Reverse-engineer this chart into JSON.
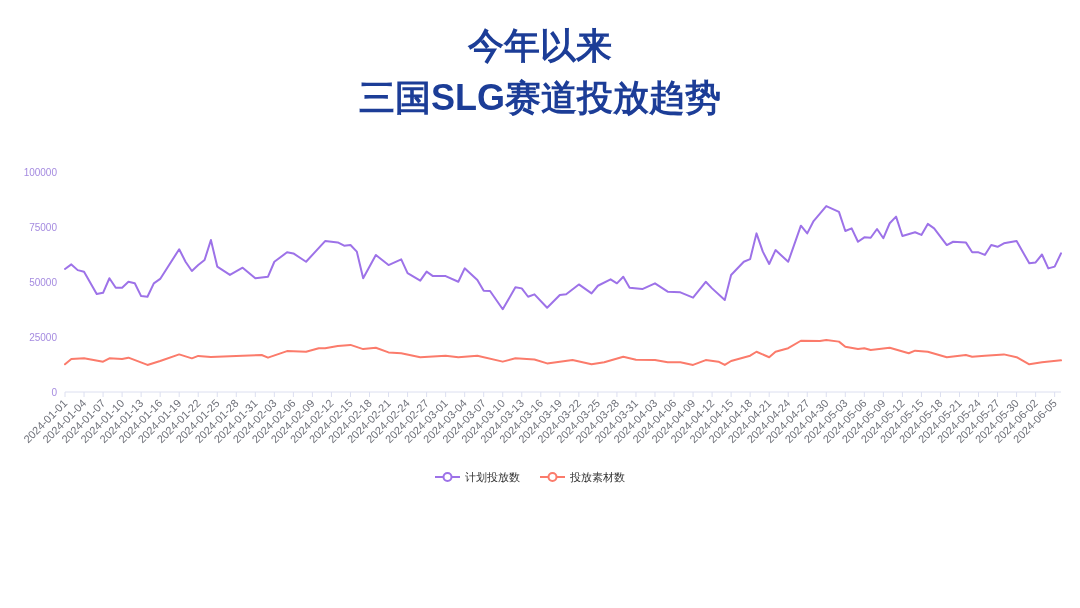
{
  "chart_data": {
    "type": "line",
    "title": "今年以来",
    "subtitle": "三国SLG赛道投放趋势",
    "xlim": [
      "2024-01-01",
      "2024-06-06"
    ],
    "xticks": [
      "2024-01-01",
      "2024-01-04",
      "2024-01-07",
      "2024-01-10",
      "2024-01-13",
      "2024-01-16",
      "2024-01-19",
      "2024-01-22",
      "2024-01-25",
      "2024-01-28",
      "2024-01-31",
      "2024-02-03",
      "2024-02-06",
      "2024-02-09",
      "2024-02-12",
      "2024-02-15",
      "2024-02-18",
      "2024-02-21",
      "2024-02-24",
      "2024-02-27",
      "2024-03-01",
      "2024-03-04",
      "2024-03-07",
      "2024-03-10",
      "2024-03-13",
      "2024-03-16",
      "2024-03-19",
      "2024-03-22",
      "2024-03-25",
      "2024-03-28",
      "2024-03-31",
      "2024-04-03",
      "2024-04-06",
      "2024-04-09",
      "2024-04-12",
      "2024-04-15",
      "2024-04-18",
      "2024-04-21",
      "2024-04-24",
      "2024-04-27",
      "2024-04-30",
      "2024-05-03",
      "2024-05-06",
      "2024-05-09",
      "2024-05-12",
      "2024-05-15",
      "2024-05-18",
      "2024-05-21",
      "2024-05-24",
      "2024-05-27",
      "2024-05-30",
      "2024-06-02",
      "2024-06-05"
    ],
    "ylim": [
      0,
      100000
    ],
    "yticks": [
      0,
      25000,
      50000,
      75000,
      100000
    ],
    "legend": "bottom",
    "marker": "none",
    "line_style": "solid",
    "series": [
      {
        "name": "计划投放数",
        "color": "#9d72e8",
        "x": [
          "2024-01-01",
          "2024-01-02",
          "2024-01-03",
          "2024-01-04",
          "2024-01-06",
          "2024-01-07",
          "2024-01-08",
          "2024-01-09",
          "2024-01-10",
          "2024-01-11",
          "2024-01-12",
          "2024-01-13",
          "2024-01-14",
          "2024-01-15",
          "2024-01-16",
          "2024-01-19",
          "2024-01-20",
          "2024-01-21",
          "2024-01-22",
          "2024-01-23",
          "2024-01-24",
          "2024-01-25",
          "2024-01-27",
          "2024-01-29",
          "2024-01-31",
          "2024-02-02",
          "2024-02-03",
          "2024-02-05",
          "2024-02-06",
          "2024-02-08",
          "2024-02-11",
          "2024-02-13",
          "2024-02-14",
          "2024-02-15",
          "2024-02-16",
          "2024-02-17",
          "2024-02-19",
          "2024-02-21",
          "2024-02-23",
          "2024-02-24",
          "2024-02-26",
          "2024-02-27",
          "2024-02-28",
          "2024-03-01",
          "2024-03-03",
          "2024-03-04",
          "2024-03-06",
          "2024-03-07",
          "2024-03-08",
          "2024-03-10",
          "2024-03-12",
          "2024-03-13",
          "2024-03-14",
          "2024-03-15",
          "2024-03-17",
          "2024-03-19",
          "2024-03-20",
          "2024-03-22",
          "2024-03-24",
          "2024-03-25",
          "2024-03-27",
          "2024-03-28",
          "2024-03-29",
          "2024-03-30",
          "2024-04-01",
          "2024-04-03",
          "2024-04-05",
          "2024-04-07",
          "2024-04-09",
          "2024-04-11",
          "2024-04-12",
          "2024-04-14",
          "2024-04-15",
          "2024-04-17",
          "2024-04-18",
          "2024-04-19",
          "2024-04-20",
          "2024-04-21",
          "2024-04-22",
          "2024-04-24",
          "2024-04-26",
          "2024-04-27",
          "2024-04-28",
          "2024-04-30",
          "2024-05-02",
          "2024-05-03",
          "2024-05-04",
          "2024-05-05",
          "2024-05-06",
          "2024-05-07",
          "2024-05-08",
          "2024-05-09",
          "2024-05-10",
          "2024-05-11",
          "2024-05-12",
          "2024-05-14",
          "2024-05-15",
          "2024-05-16",
          "2024-05-17",
          "2024-05-19",
          "2024-05-20",
          "2024-05-22",
          "2024-05-23",
          "2024-05-24",
          "2024-05-25",
          "2024-05-26",
          "2024-05-27",
          "2024-05-28",
          "2024-05-30",
          "2024-06-01",
          "2024-06-02",
          "2024-06-03",
          "2024-06-04",
          "2024-06-05",
          "2024-06-06"
        ],
        "values": [
          55900,
          58000,
          55400,
          54700,
          44500,
          45100,
          51700,
          47400,
          47400,
          50100,
          49400,
          43600,
          43300,
          49400,
          51400,
          64900,
          59200,
          55000,
          57700,
          60000,
          69100,
          57000,
          53200,
          56500,
          51700,
          52400,
          59200,
          63500,
          63000,
          59200,
          68600,
          68000,
          66500,
          66800,
          63800,
          51700,
          62300,
          57700,
          60300,
          54000,
          50600,
          54700,
          52700,
          52700,
          50100,
          56200,
          50900,
          46000,
          45900,
          37600,
          47600,
          47100,
          43300,
          44400,
          38300,
          44100,
          44400,
          48900,
          44800,
          48300,
          51200,
          49400,
          52400,
          47400,
          46800,
          49400,
          45600,
          45300,
          42900,
          50100,
          47100,
          41800,
          53200,
          59200,
          60400,
          72100,
          63800,
          58200,
          64500,
          59200,
          75600,
          72100,
          77700,
          84500,
          81900,
          73200,
          74400,
          68300,
          70300,
          70100,
          74100,
          69900,
          76700,
          79700,
          70900,
          72600,
          71400,
          76400,
          74400,
          66800,
          68300,
          68000,
          63500,
          63500,
          62300,
          66800,
          66000,
          67600,
          68600,
          58500,
          58900,
          62500,
          56200,
          57000,
          63000
        ]
      },
      {
        "name": "投放素材数",
        "color": "#fb7b6b",
        "x": [
          "2024-01-01",
          "2024-01-02",
          "2024-01-04",
          "2024-01-07",
          "2024-01-08",
          "2024-01-10",
          "2024-01-11",
          "2024-01-14",
          "2024-01-16",
          "2024-01-19",
          "2024-01-21",
          "2024-01-22",
          "2024-01-24",
          "2024-01-29",
          "2024-02-01",
          "2024-02-02",
          "2024-02-05",
          "2024-02-08",
          "2024-02-10",
          "2024-02-11",
          "2024-02-13",
          "2024-02-15",
          "2024-02-17",
          "2024-02-19",
          "2024-02-21",
          "2024-02-23",
          "2024-02-26",
          "2024-03-01",
          "2024-03-03",
          "2024-03-06",
          "2024-03-10",
          "2024-03-12",
          "2024-03-15",
          "2024-03-17",
          "2024-03-21",
          "2024-03-24",
          "2024-03-26",
          "2024-03-29",
          "2024-03-31",
          "2024-04-03",
          "2024-04-05",
          "2024-04-07",
          "2024-04-09",
          "2024-04-11",
          "2024-04-13",
          "2024-04-14",
          "2024-04-15",
          "2024-04-18",
          "2024-04-19",
          "2024-04-21",
          "2024-04-22",
          "2024-04-24",
          "2024-04-26",
          "2024-04-29",
          "2024-04-30",
          "2024-05-02",
          "2024-05-03",
          "2024-05-05",
          "2024-05-06",
          "2024-05-07",
          "2024-05-08",
          "2024-05-10",
          "2024-05-13",
          "2024-05-14",
          "2024-05-16",
          "2024-05-19",
          "2024-05-22",
          "2024-05-23",
          "2024-05-25",
          "2024-05-28",
          "2024-05-30",
          "2024-06-01",
          "2024-06-03",
          "2024-06-06"
        ],
        "values": [
          12600,
          15000,
          15300,
          13800,
          15300,
          15000,
          15600,
          12300,
          14100,
          17100,
          15300,
          16400,
          15900,
          16500,
          16800,
          15600,
          18600,
          18300,
          19900,
          19900,
          20900,
          21400,
          19500,
          20100,
          18000,
          17600,
          15800,
          16500,
          15800,
          16500,
          13800,
          15300,
          14800,
          13000,
          14500,
          12600,
          13500,
          16000,
          14700,
          14500,
          13500,
          13500,
          12300,
          14500,
          13800,
          12300,
          14100,
          16500,
          18300,
          15800,
          18300,
          19900,
          23300,
          23200,
          23600,
          22900,
          20600,
          19500,
          19900,
          19100,
          19400,
          20100,
          17600,
          18800,
          18300,
          15800,
          16800,
          16000,
          16500,
          17100,
          15800,
          12600,
          13500,
          14400
        ]
      }
    ]
  }
}
